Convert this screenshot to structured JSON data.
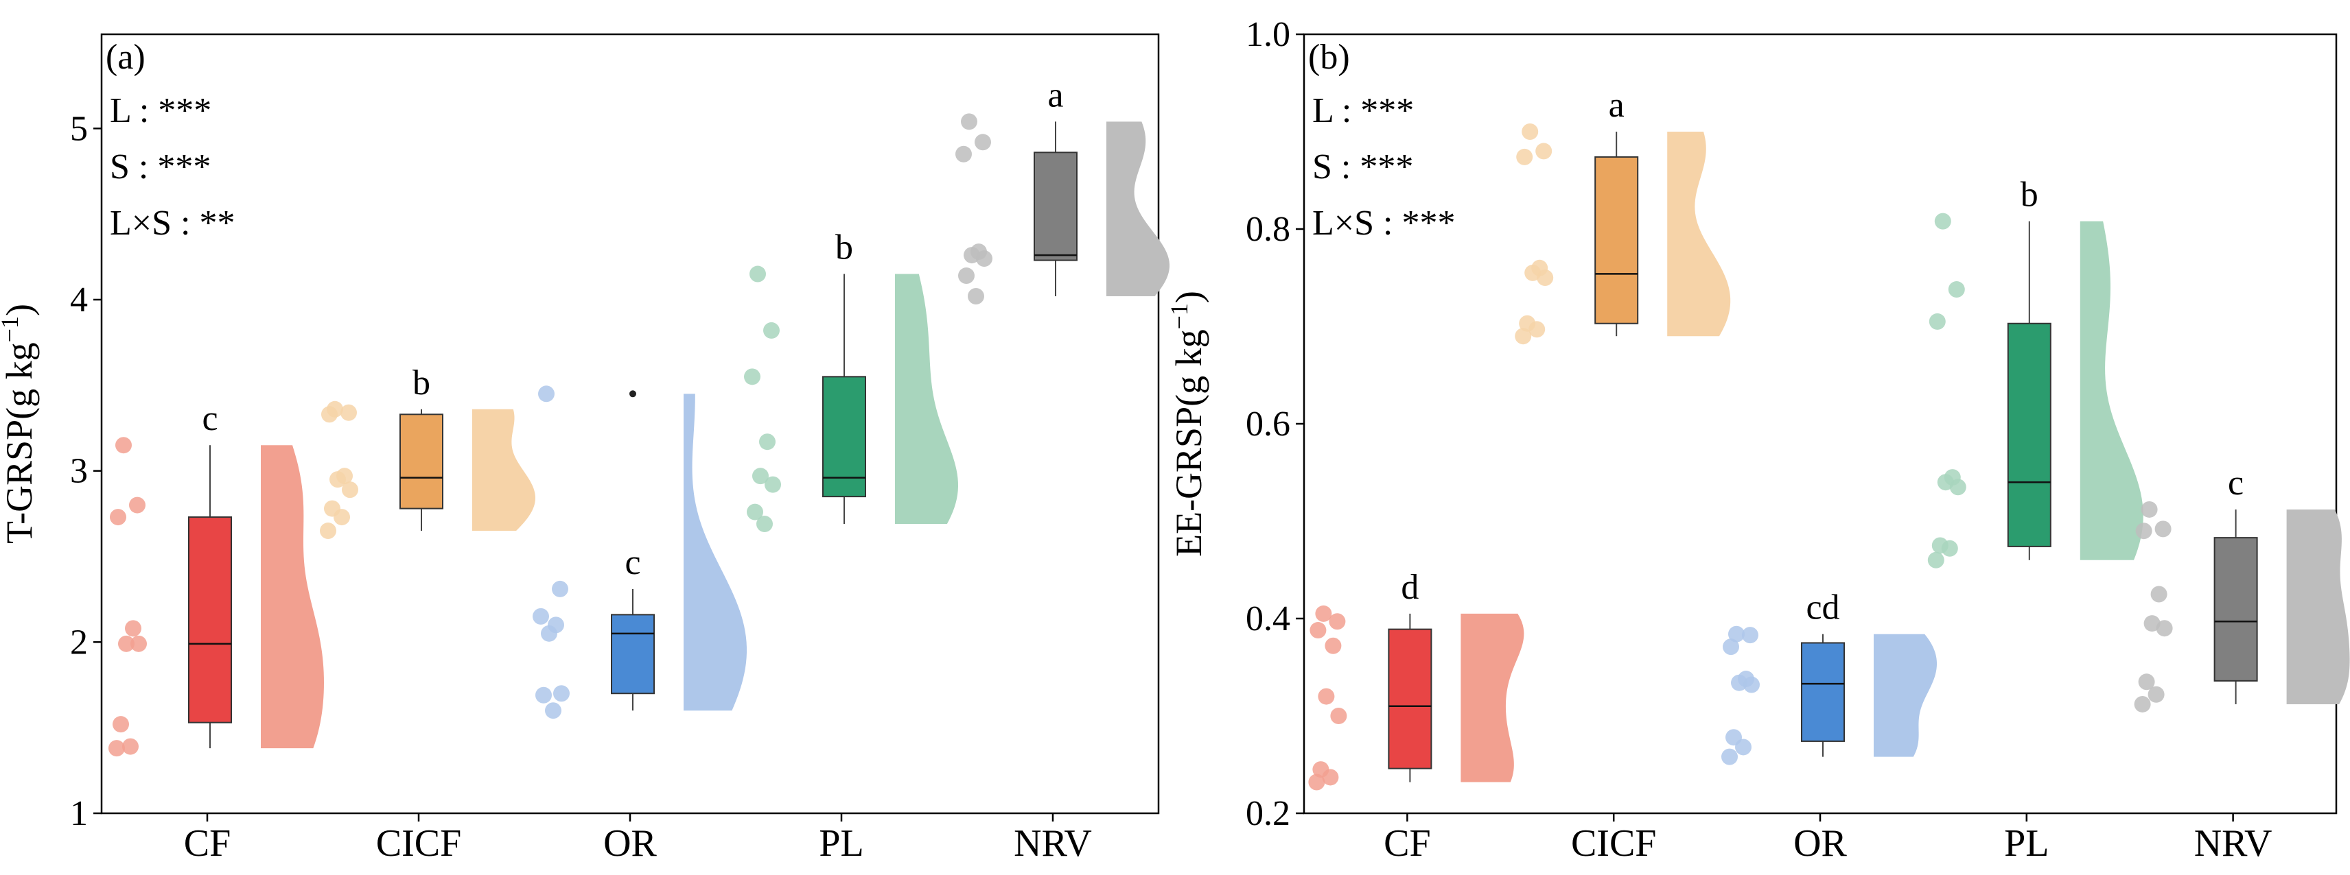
{
  "chart_data": [
    {
      "type": "raincloud-box",
      "panel_label": "(a)",
      "ylabel": "T-GRSP(g kg",
      "ylabel_superscript": "−1",
      "ylabel_close": ")",
      "ylim": [
        1,
        5.55
      ],
      "yticks": [
        1,
        2,
        3,
        4,
        5
      ],
      "categories": [
        "CF",
        "CICF",
        "OR",
        "PL",
        "NRV"
      ],
      "significance": [
        "L : ***",
        "S : ***",
        "L×S : **"
      ],
      "groups": [
        {
          "name": "CF",
          "color": "#e84545",
          "light": "#f2a090",
          "points": [
            3.15,
            2.8,
            2.73,
            2.08,
            1.99,
            1.99,
            1.52,
            1.39,
            1.38
          ],
          "q1": 1.53,
          "median": 1.99,
          "q3": 2.73,
          "whisker_low": 1.38,
          "whisker_high": 3.15,
          "outliers": [],
          "letter": "c"
        },
        {
          "name": "CICF",
          "color": "#eaa55e",
          "light": "#f6d3a8",
          "points": [
            3.36,
            3.34,
            3.33,
            2.97,
            2.95,
            2.89,
            2.78,
            2.73,
            2.65
          ],
          "q1": 2.78,
          "median": 2.96,
          "q3": 3.33,
          "whisker_low": 2.65,
          "whisker_high": 3.36,
          "outliers": [],
          "letter": "b"
        },
        {
          "name": "OR",
          "color": "#4a8ad4",
          "light": "#aec7ea",
          "points": [
            3.45,
            2.31,
            2.15,
            2.1,
            2.05,
            1.7,
            1.69,
            1.6
          ],
          "q1": 1.7,
          "median": 2.05,
          "q3": 2.16,
          "whisker_low": 1.6,
          "whisker_high": 2.31,
          "outliers": [
            3.45
          ],
          "letter": "c"
        },
        {
          "name": "PL",
          "color": "#2b9c6e",
          "light": "#a8d5bd",
          "points": [
            4.15,
            3.82,
            3.55,
            3.17,
            2.97,
            2.92,
            2.76,
            2.69
          ],
          "q1": 2.85,
          "median": 2.96,
          "q3": 3.55,
          "whisker_low": 2.69,
          "whisker_high": 4.15,
          "outliers": [],
          "letter": "b"
        },
        {
          "name": "NRV",
          "color": "#808080",
          "light": "#bdbdbd",
          "points": [
            5.04,
            4.92,
            4.85,
            4.28,
            4.26,
            4.24,
            4.14,
            4.02
          ],
          "q1": 4.23,
          "median": 4.26,
          "q3": 4.86,
          "whisker_low": 4.02,
          "whisker_high": 5.04,
          "outliers": [],
          "letter": "a"
        }
      ]
    },
    {
      "type": "raincloud-box",
      "panel_label": "(b)",
      "ylabel": "EE-GRSP(g kg",
      "ylabel_superscript": "−1",
      "ylabel_close": ")",
      "ylim": [
        0.2,
        1.0
      ],
      "yticks": [
        "0.2",
        "0.4",
        "0.6",
        "0.8",
        "1.0"
      ],
      "categories": [
        "CF",
        "CICF",
        "OR",
        "PL",
        "NRV"
      ],
      "significance": [
        "L : ***",
        "S : ***",
        "L×S : ***"
      ],
      "groups": [
        {
          "name": "CF",
          "color": "#e84545",
          "light": "#f2a090",
          "points": [
            0.405,
            0.397,
            0.388,
            0.372,
            0.32,
            0.3,
            0.245,
            0.237,
            0.232
          ],
          "q1": 0.246,
          "median": 0.31,
          "q3": 0.389,
          "whisker_low": 0.232,
          "whisker_high": 0.405,
          "outliers": [],
          "letter": "d"
        },
        {
          "name": "CICF",
          "color": "#eaa55e",
          "light": "#f6d3a8",
          "points": [
            0.9,
            0.88,
            0.874,
            0.76,
            0.755,
            0.75,
            0.703,
            0.697,
            0.69
          ],
          "q1": 0.703,
          "median": 0.754,
          "q3": 0.874,
          "whisker_low": 0.69,
          "whisker_high": 0.9,
          "outliers": [],
          "letter": "a"
        },
        {
          "name": "OR",
          "color": "#4a8ad4",
          "light": "#aec7ea",
          "points": [
            0.384,
            0.383,
            0.371,
            0.338,
            0.334,
            0.332,
            0.278,
            0.268,
            0.258
          ],
          "q1": 0.274,
          "median": 0.333,
          "q3": 0.375,
          "whisker_low": 0.258,
          "whisker_high": 0.384,
          "outliers": [],
          "letter": "cd"
        },
        {
          "name": "PL",
          "color": "#2b9c6e",
          "light": "#a8d5bd",
          "points": [
            0.808,
            0.738,
            0.705,
            0.545,
            0.54,
            0.535,
            0.475,
            0.472,
            0.46
          ],
          "q1": 0.474,
          "median": 0.54,
          "q3": 0.703,
          "whisker_low": 0.46,
          "whisker_high": 0.808,
          "outliers": [],
          "letter": "b"
        },
        {
          "name": "NRV",
          "color": "#808080",
          "light": "#bdbdbd",
          "points": [
            0.512,
            0.492,
            0.49,
            0.425,
            0.395,
            0.39,
            0.335,
            0.322,
            0.312
          ],
          "q1": 0.336,
          "median": 0.397,
          "q3": 0.483,
          "whisker_low": 0.312,
          "whisker_high": 0.512,
          "outliers": [],
          "letter": "c"
        }
      ]
    }
  ]
}
